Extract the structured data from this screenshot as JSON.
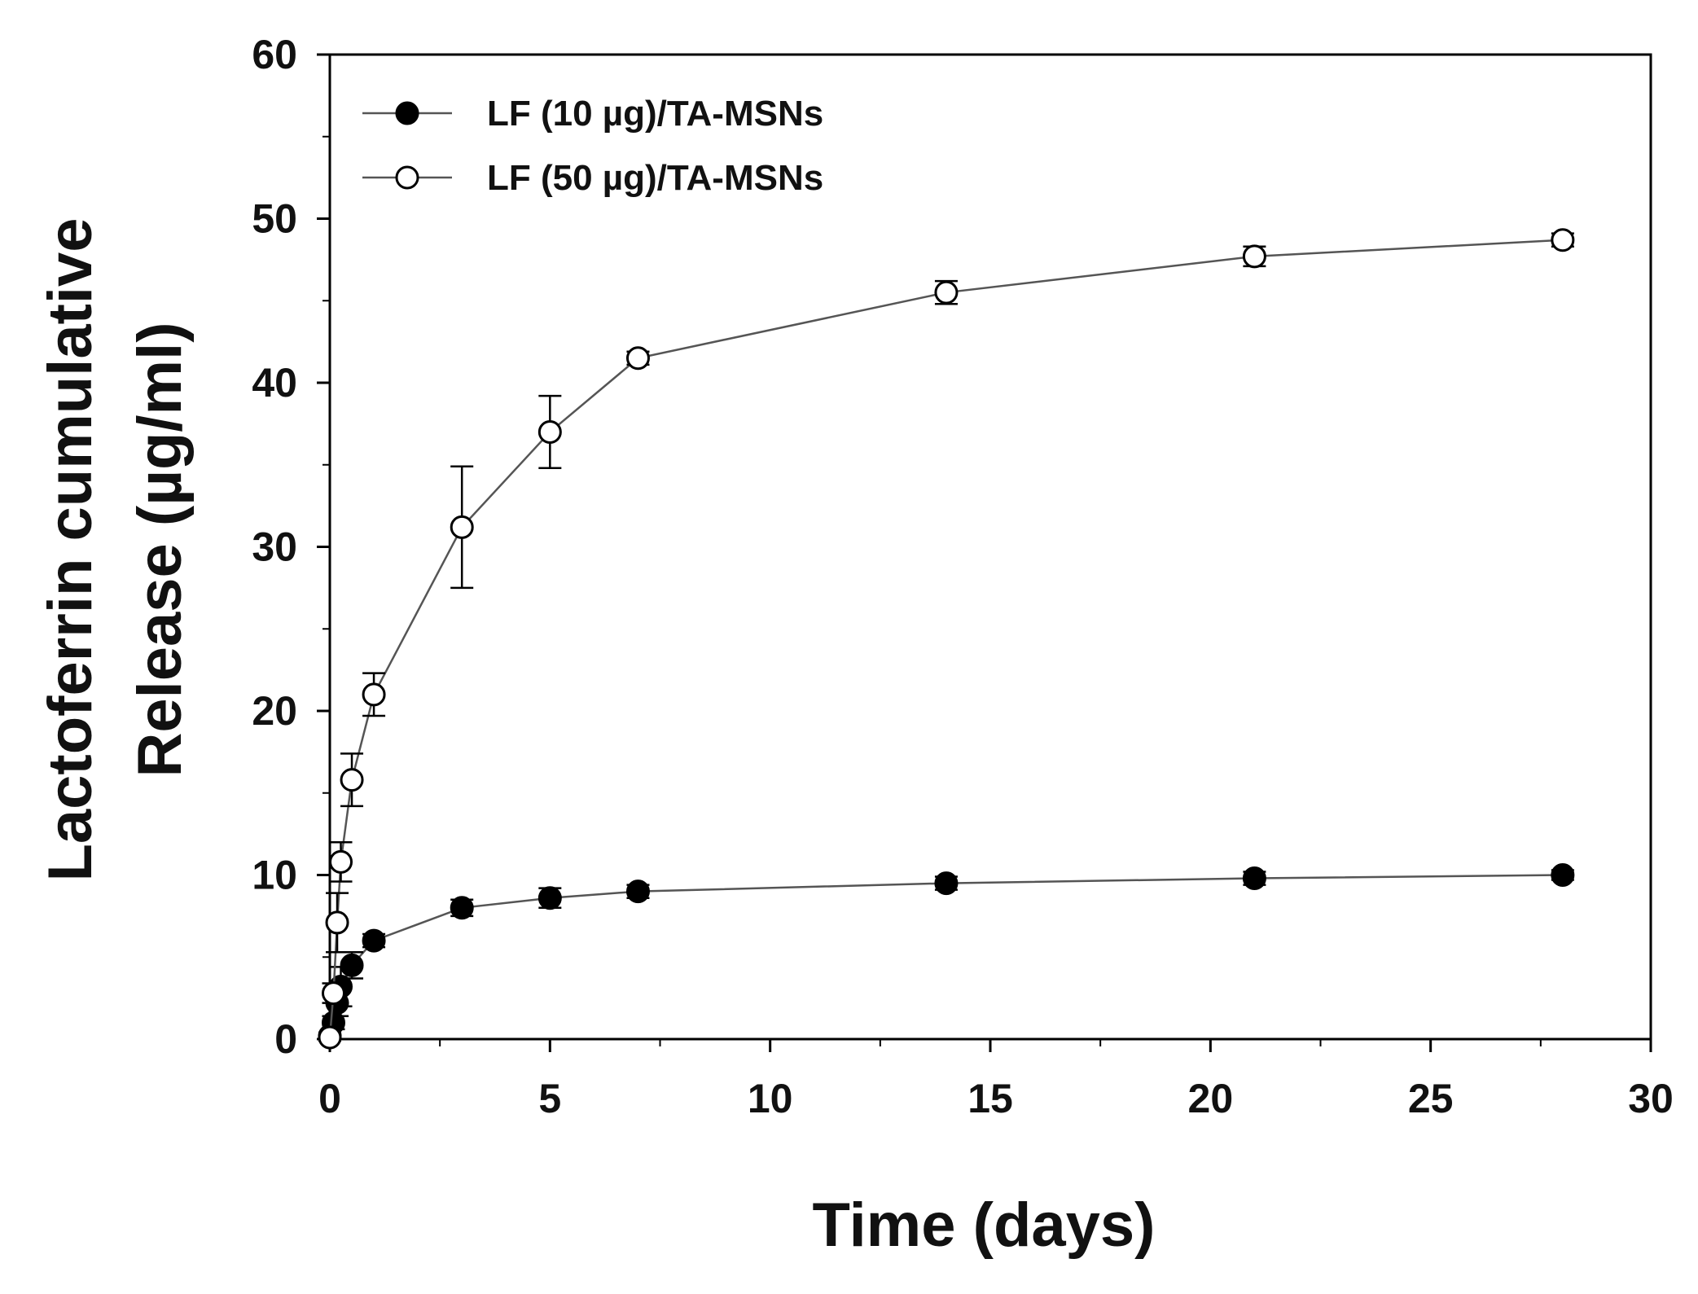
{
  "chart_data": {
    "type": "line",
    "xlabel": "Time (days)",
    "ylabel_line1": "Lactoferrin cumulative",
    "ylabel_line2": "Release (µg/ml)",
    "xlim": [
      0,
      30
    ],
    "ylim": [
      0,
      60
    ],
    "xticks": [
      0,
      5,
      10,
      15,
      20,
      25,
      30
    ],
    "yticks": [
      0,
      10,
      20,
      30,
      40,
      50,
      60
    ],
    "grid": false,
    "legend_position": "top-left",
    "series": [
      {
        "name": "LF (10 µg)/TA-MSNs",
        "marker": "filled-circle",
        "color": "#000000",
        "x": [
          0,
          0.083,
          0.167,
          0.25,
          0.5,
          1,
          3,
          5,
          7,
          14,
          21,
          28
        ],
        "y": [
          0.2,
          1.0,
          2.2,
          3.2,
          4.5,
          6.0,
          8.0,
          8.6,
          9.0,
          9.5,
          9.8,
          10.0
        ],
        "error": [
          0.2,
          0.4,
          0.8,
          1.2,
          0.8,
          0.4,
          0.5,
          0.6,
          0.4,
          0.4,
          0.4,
          0.3
        ]
      },
      {
        "name": "LF (50 µg)/TA-MSNs",
        "marker": "open-circle",
        "color": "#000000",
        "x": [
          0,
          0.083,
          0.167,
          0.25,
          0.5,
          1,
          3,
          5,
          7,
          14,
          21,
          28
        ],
        "y": [
          0.1,
          2.8,
          7.1,
          10.8,
          15.8,
          21.0,
          31.2,
          37.0,
          41.5,
          45.5,
          47.7,
          48.7
        ],
        "error": [
          0.2,
          0.6,
          1.8,
          1.2,
          1.6,
          1.3,
          3.7,
          2.2,
          0.4,
          0.7,
          0.6,
          0.4
        ]
      }
    ]
  }
}
